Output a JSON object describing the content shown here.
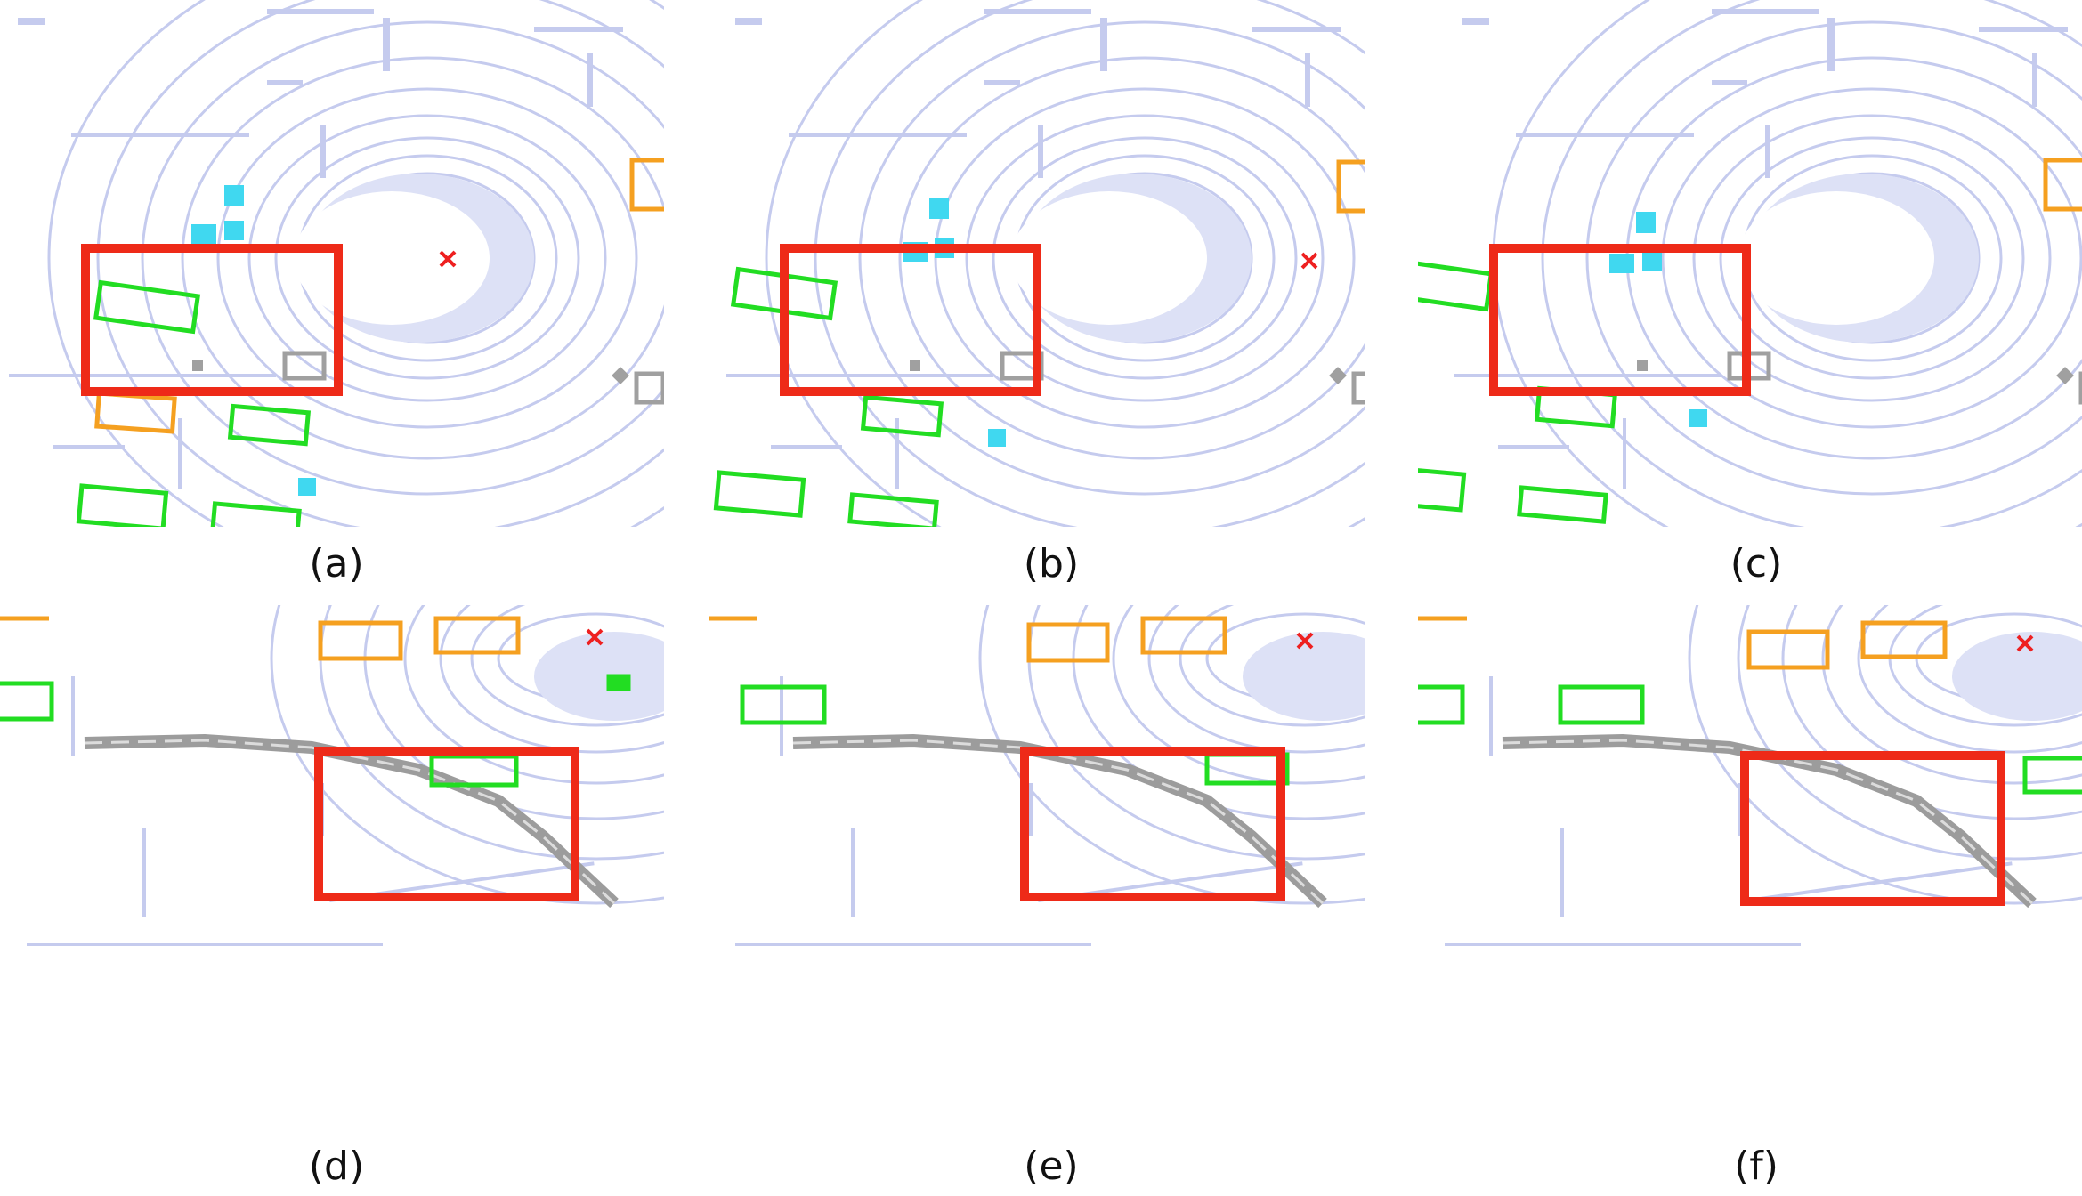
{
  "figure": {
    "panels": [
      {
        "id": "a",
        "caption": "(a)"
      },
      {
        "id": "b",
        "caption": "(b)"
      },
      {
        "id": "c",
        "caption": "(c)"
      },
      {
        "id": "d",
        "caption": "(d)"
      },
      {
        "id": "e",
        "caption": "(e)"
      },
      {
        "id": "f",
        "caption": "(f)"
      }
    ]
  },
  "colors": {
    "point_cloud": "#c5cbee",
    "car_box": "#22dd22",
    "truck_box": "#f5a020",
    "pedestrian_box": "#40d8f0",
    "barrier": "#a0a0a0",
    "highlight_box": "#ee2a18",
    "ego_marker": "#ee2020"
  },
  "legend_semantics": {
    "ego": "x-mark-icon"
  }
}
